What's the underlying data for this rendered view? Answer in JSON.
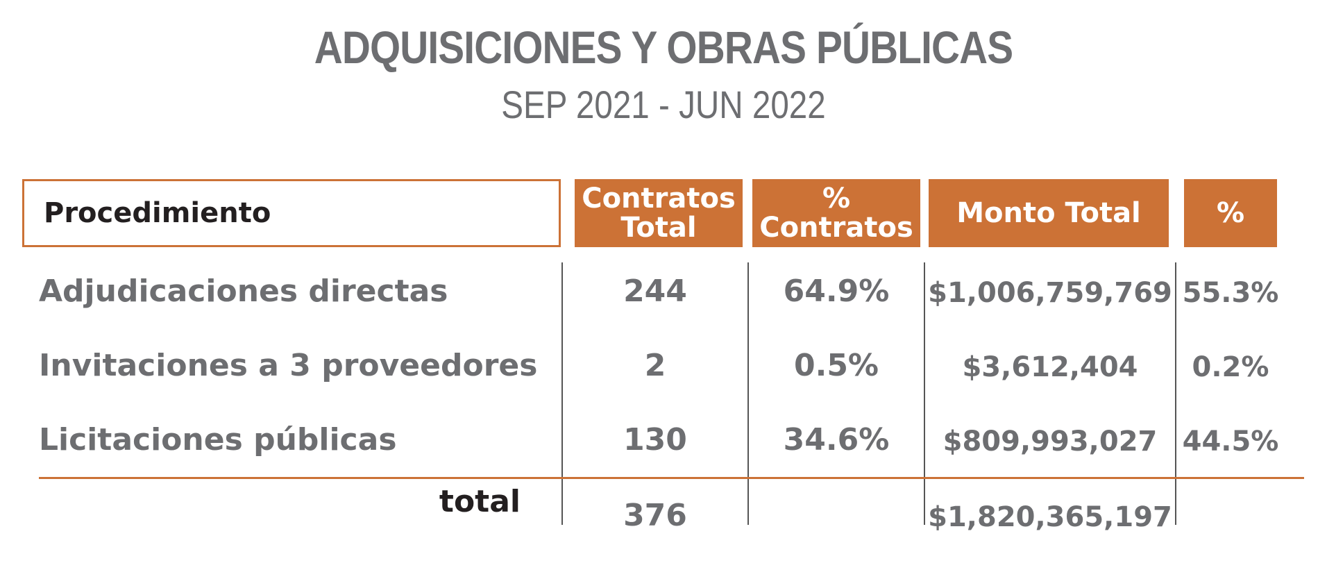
{
  "header": {
    "title": "ADQUISICIONES Y OBRAS PÚBLICAS",
    "subtitle": "SEP 2021 - JUN 2022"
  },
  "table": {
    "columns": [
      "Procedimiento",
      "Contratos Total",
      "% Contratos",
      "Monto Total",
      "%"
    ],
    "column_lines": {
      "contratos_total": [
        "Contratos",
        "Total"
      ],
      "pct_contratos": [
        "%",
        "Contratos"
      ]
    },
    "rows": [
      {
        "procedimiento": "Adjudicaciones directas",
        "contratos": "244",
        "pct_contratos": "64.9%",
        "monto": "$1,006,759,769",
        "pct_monto": "55.3%"
      },
      {
        "procedimiento": "Invitaciones a 3 proveedores",
        "contratos": "2",
        "pct_contratos": "0.5%",
        "monto": "$3,612,404",
        "pct_monto": "0.2%"
      },
      {
        "procedimiento": "Licitaciones públicas",
        "contratos": "130",
        "pct_contratos": "34.6%",
        "monto": "$809,993,027",
        "pct_monto": "44.5%"
      }
    ],
    "total": {
      "label": "total",
      "contratos": "376",
      "monto": "$1,820,365,197"
    }
  },
  "colors": {
    "accent": "#cc7236",
    "text_gray": "#6d6e71",
    "text_dark": "#231f20"
  }
}
